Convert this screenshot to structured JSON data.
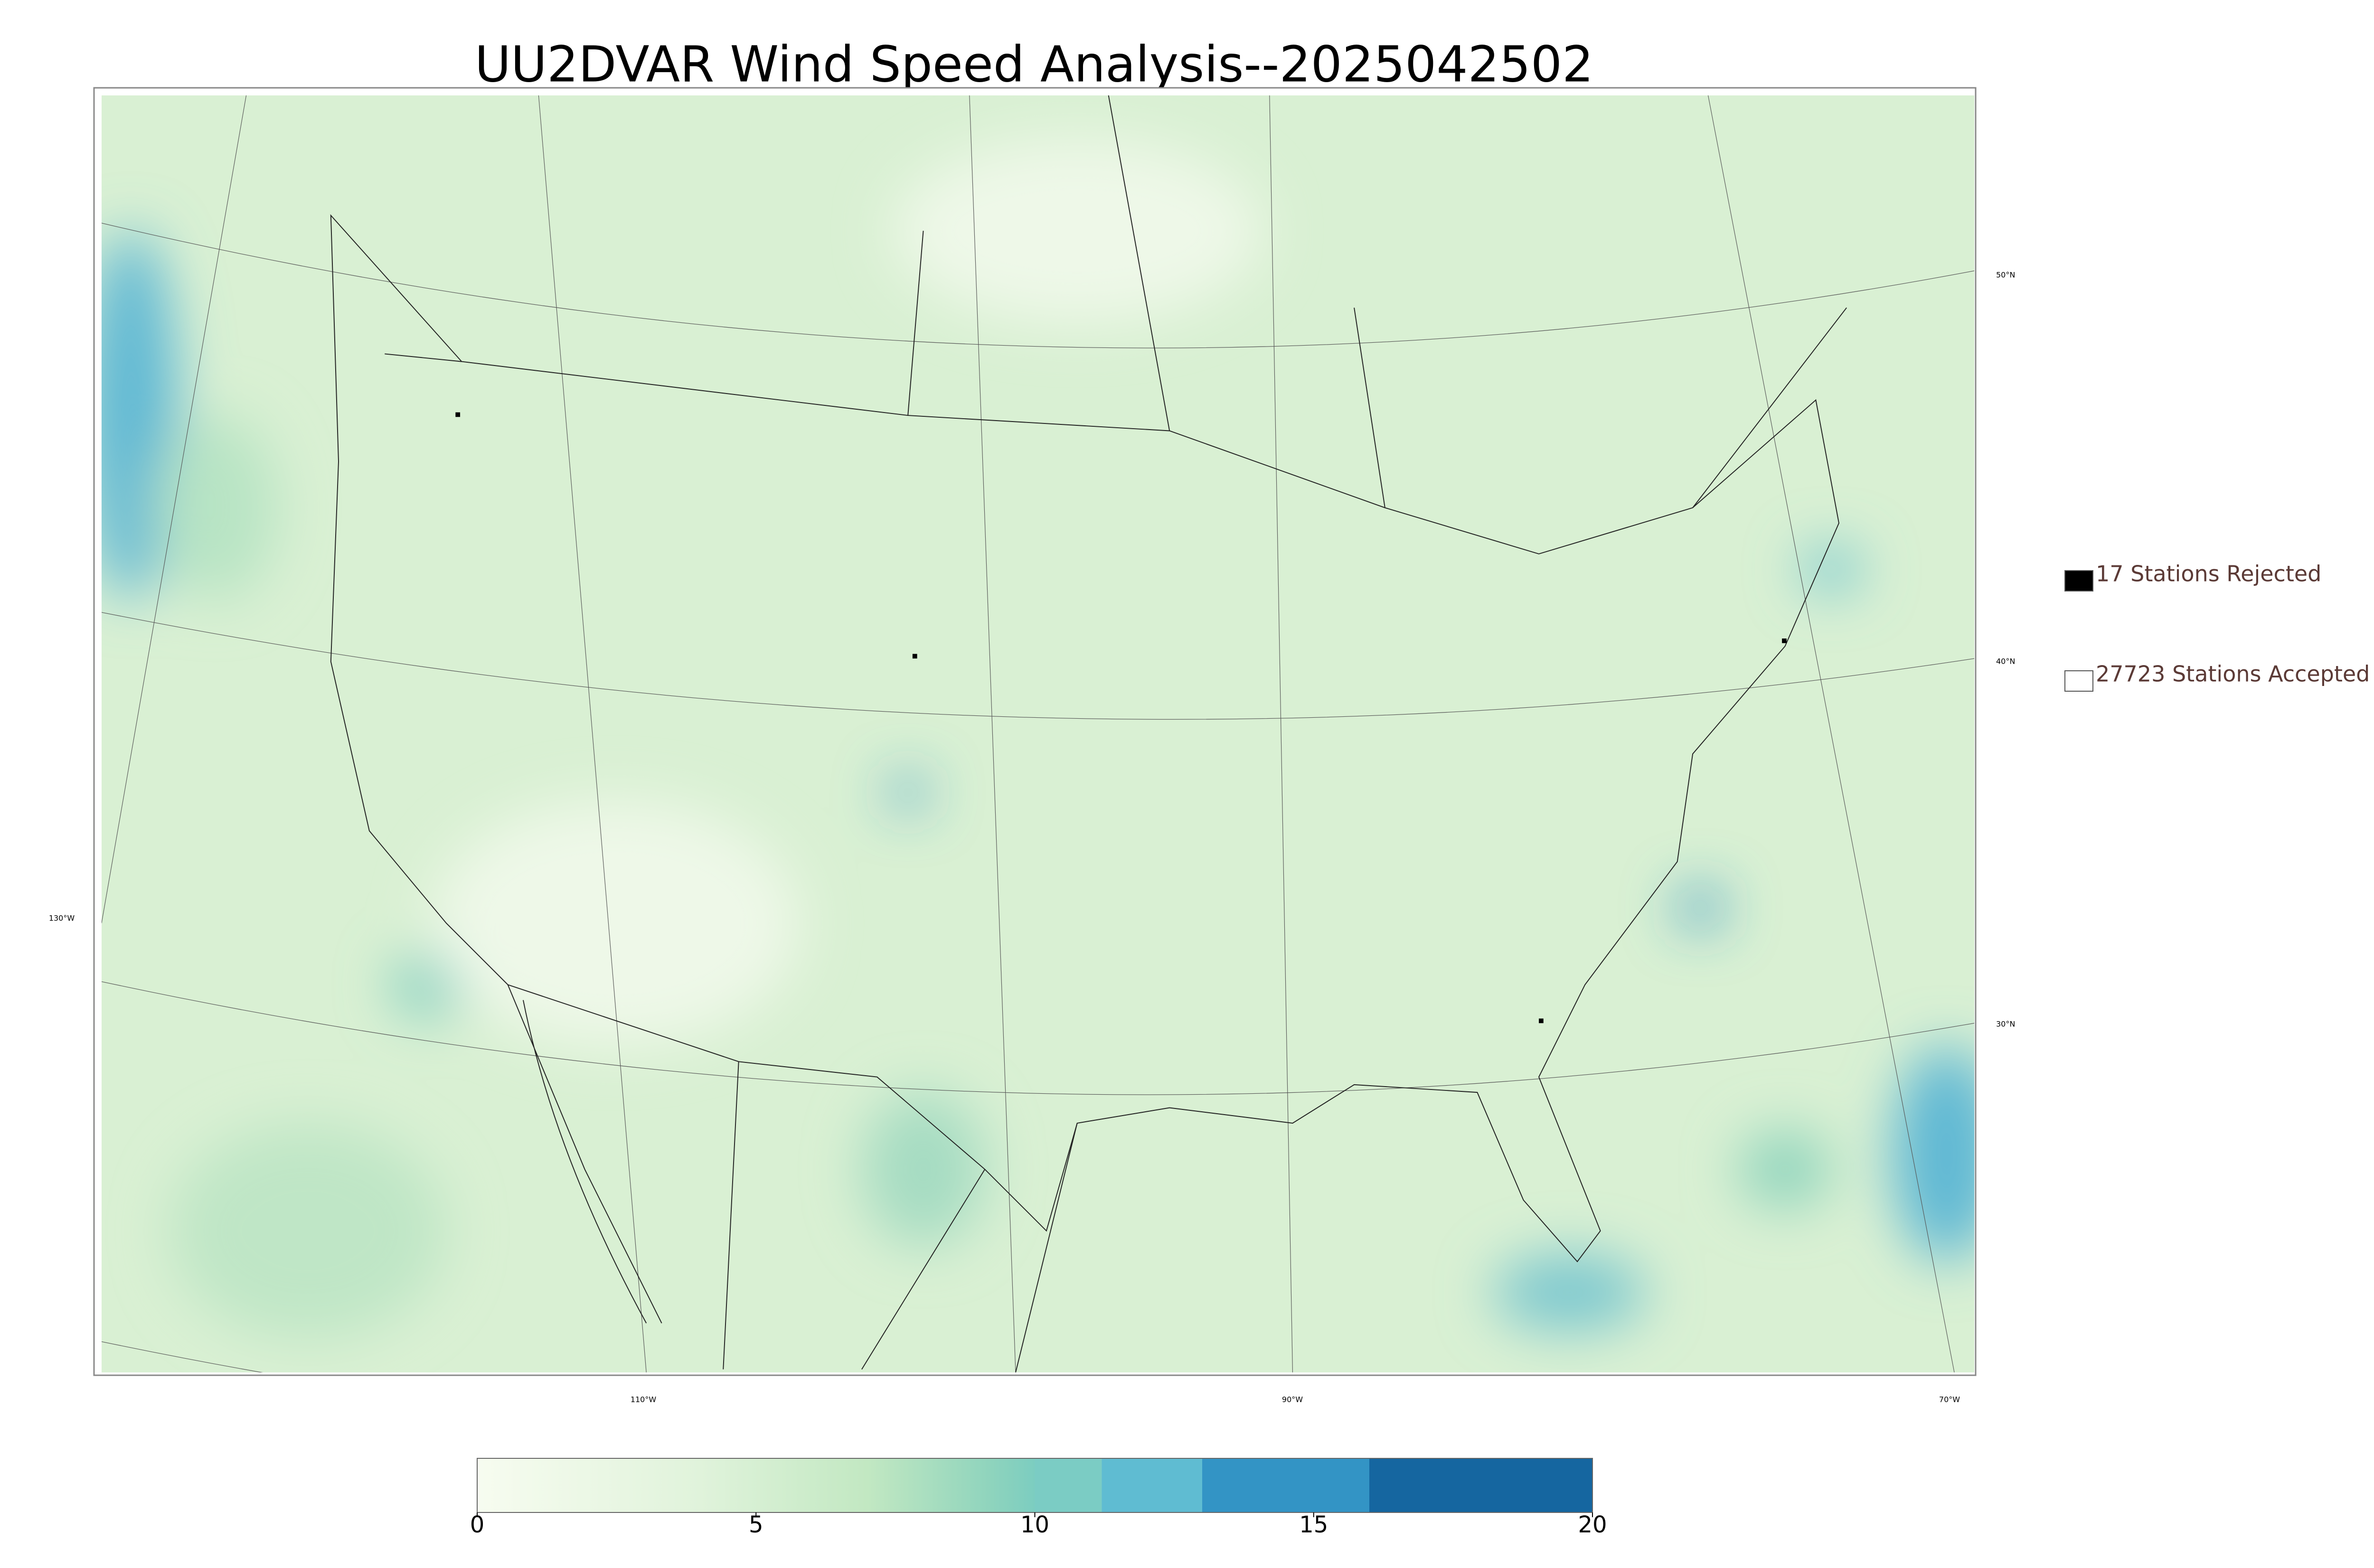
{
  "title": "UU2DVAR Wind Speed Analysis--2025042502",
  "legend": [
    {
      "label": "17 Stations Rejected",
      "color": "#000000"
    },
    {
      "label": "27723 Stations Accepted",
      "color": "#ffffff"
    }
  ],
  "colorbar": {
    "lim": [
      0,
      20
    ],
    "ticks": [
      0,
      5,
      10,
      15,
      20
    ]
  },
  "longitude_labels": [
    "130°W",
    "110°W",
    "90°W",
    "70°W"
  ],
  "latitude_labels": [
    "50°N",
    "40°N",
    "30°N"
  ]
}
